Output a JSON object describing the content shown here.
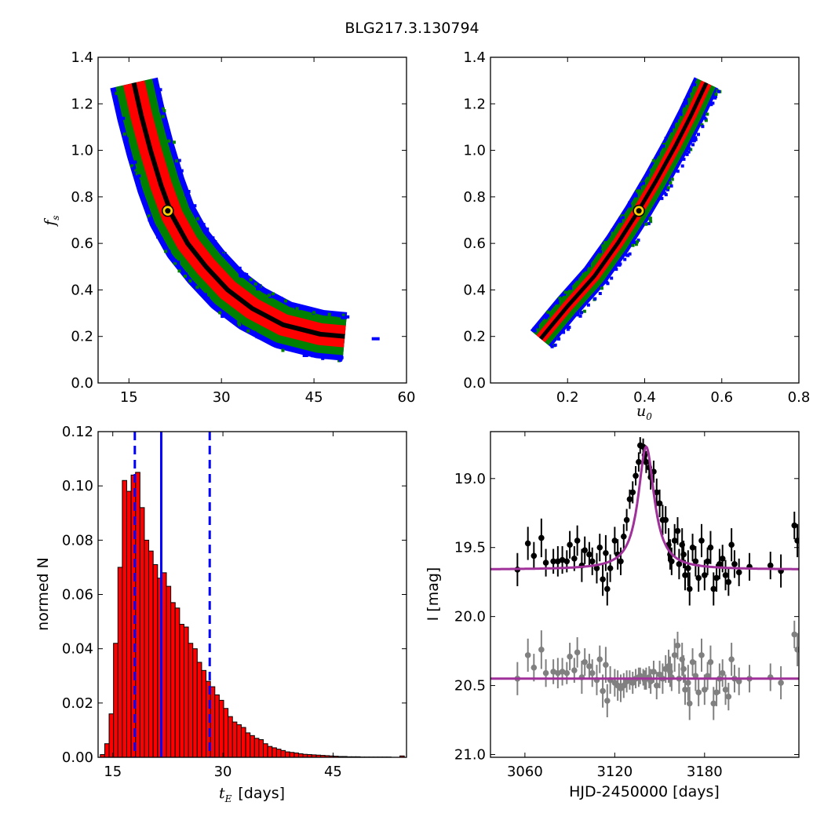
{
  "title": "BLG217.3.130794",
  "chart_data": [
    {
      "type": "heatmap",
      "panel": "fs-vs-tE",
      "xlabel": "",
      "ylabel": "f_s",
      "ylabel_main": "f",
      "ylabel_sub": "s",
      "xlim": [
        10,
        60
      ],
      "ylim": [
        0,
        1.4
      ],
      "xticks": [
        15,
        30,
        45,
        60
      ],
      "xtick_labels": [
        "15",
        "30",
        "45",
        "60"
      ],
      "yticks": [
        0.0,
        0.2,
        0.4,
        0.6,
        0.8,
        1.0,
        1.2,
        1.4
      ],
      "ytick_labels": [
        "0.0",
        "0.2",
        "0.4",
        "0.6",
        "0.8",
        "1.0",
        "1.2",
        "1.4"
      ],
      "confidence_colors": {
        "inner": "#000000",
        "1sigma": "#ff0000",
        "2sigma": "#008000",
        "3sigma": "#0000ff"
      },
      "ridge": [
        [
          15.8,
          1.29
        ],
        [
          17,
          1.15
        ],
        [
          18.5,
          1.0
        ],
        [
          20.2,
          0.85
        ],
        [
          22,
          0.72
        ],
        [
          24.5,
          0.6
        ],
        [
          27.5,
          0.5
        ],
        [
          31,
          0.4
        ],
        [
          35,
          0.32
        ],
        [
          40,
          0.25
        ],
        [
          46,
          0.21
        ],
        [
          50,
          0.2
        ]
      ],
      "best_fit": {
        "x": 21.3,
        "y": 0.74
      },
      "isolated_points": [
        [
          55,
          0.19
        ]
      ]
    },
    {
      "type": "heatmap",
      "panel": "fs-vs-u0",
      "xlabel": "u_0",
      "xlabel_main": "u",
      "xlabel_sub": "0",
      "ylabel": "",
      "xlim": [
        0,
        0.8
      ],
      "ylim": [
        0,
        1.4
      ],
      "xticks": [
        0.2,
        0.4,
        0.6,
        0.8
      ],
      "xtick_labels": [
        "0.2",
        "0.4",
        "0.6",
        "0.8"
      ],
      "yticks": [
        0.0,
        0.2,
        0.4,
        0.6,
        0.8,
        1.0,
        1.2,
        1.4
      ],
      "ytick_labels": [
        "0.0",
        "0.2",
        "0.4",
        "0.6",
        "0.8",
        "1.0",
        "1.2",
        "1.4"
      ],
      "confidence_colors": {
        "inner": "#000000",
        "1sigma": "#ff0000",
        "2sigma": "#008000",
        "3sigma": "#0000ff"
      },
      "ridge": [
        [
          0.13,
          0.19
        ],
        [
          0.2,
          0.33
        ],
        [
          0.27,
          0.46
        ],
        [
          0.33,
          0.6
        ],
        [
          0.38,
          0.73
        ],
        [
          0.43,
          0.87
        ],
        [
          0.48,
          1.02
        ],
        [
          0.52,
          1.15
        ],
        [
          0.56,
          1.29
        ]
      ],
      "best_fit": {
        "x": 0.385,
        "y": 0.74
      }
    },
    {
      "type": "bar",
      "panel": "tE-histogram",
      "xlabel": "t_E  [days]",
      "xlabel_main": "t",
      "xlabel_sub": "E",
      "xlabel_unit": "[days]",
      "ylabel": "normed N",
      "xlim": [
        13,
        55
      ],
      "ylim": [
        0,
        0.12
      ],
      "xticks": [
        15,
        30,
        45
      ],
      "xtick_labels": [
        "15",
        "30",
        "45"
      ],
      "yticks": [
        0.0,
        0.02,
        0.04,
        0.06,
        0.08,
        0.1,
        0.12
      ],
      "ytick_labels": [
        "0.00",
        "0.02",
        "0.04",
        "0.06",
        "0.08",
        "0.10",
        "0.12"
      ],
      "bin_start": 13.3,
      "bin_width": 0.6,
      "values": [
        0.001,
        0.005,
        0.016,
        0.042,
        0.07,
        0.102,
        0.098,
        0.104,
        0.105,
        0.092,
        0.08,
        0.076,
        0.071,
        0.066,
        0.068,
        0.063,
        0.057,
        0.055,
        0.049,
        0.048,
        0.042,
        0.04,
        0.035,
        0.032,
        0.028,
        0.026,
        0.023,
        0.021,
        0.018,
        0.015,
        0.013,
        0.012,
        0.011,
        0.009,
        0.008,
        0.007,
        0.0065,
        0.005,
        0.004,
        0.0035,
        0.003,
        0.0025,
        0.002,
        0.0018,
        0.0016,
        0.0013,
        0.0011,
        0.001,
        0.0009,
        0.0008,
        0.0007,
        0.0006,
        0.0005,
        0.0004,
        0.0003,
        0.0003,
        0.0002,
        0.0002,
        0.0002,
        0.0001,
        0.0001,
        0.0001,
        0.0001,
        0.0001,
        0.0001,
        0.0001,
        0,
        0,
        0.0005
      ],
      "bar_color": "#ff0000",
      "median": 21.6,
      "lower": 18.0,
      "upper": 28.2,
      "line_color": "#0000ff"
    },
    {
      "type": "scatter",
      "panel": "light-curve",
      "xlabel": "HJD-2450000 [days]",
      "ylabel": "I [mag]",
      "xlim": [
        3037,
        3243
      ],
      "ylim": [
        21.02,
        18.66
      ],
      "y_inverted": true,
      "xticks": [
        3060,
        3120,
        3180
      ],
      "xtick_labels": [
        "3060",
        "3120",
        "3180"
      ],
      "yticks": [
        19.0,
        19.5,
        20.0,
        20.5,
        21.0
      ],
      "ytick_labels": [
        "19.0",
        "19.5",
        "20.0",
        "20.5",
        "21.0"
      ],
      "model": {
        "baseline": 19.66,
        "peak_mag": 18.77,
        "t0": 3141,
        "width": 6.5,
        "color": "#a0309a"
      },
      "residual_model": {
        "level": 20.45,
        "color": "#a0309a"
      },
      "data_color": "#000000",
      "residual_color": "#808080",
      "points": [
        [
          3055,
          19.66,
          0.12
        ],
        [
          3062,
          19.47,
          0.12
        ],
        [
          3066,
          19.56,
          0.1
        ],
        [
          3071,
          19.43,
          0.14
        ],
        [
          3074,
          19.61,
          0.1
        ],
        [
          3079,
          19.6,
          0.09
        ],
        [
          3082,
          19.6,
          0.11
        ],
        [
          3085,
          19.59,
          0.1
        ],
        [
          3088,
          19.6,
          0.08
        ],
        [
          3090,
          19.48,
          0.1
        ],
        [
          3093,
          19.58,
          0.09
        ],
        [
          3095,
          19.45,
          0.11
        ],
        [
          3098,
          19.63,
          0.12
        ],
        [
          3100,
          19.52,
          0.1
        ],
        [
          3103,
          19.55,
          0.09
        ],
        [
          3105,
          19.6,
          0.1
        ],
        [
          3108,
          19.65,
          0.11
        ],
        [
          3110,
          19.5,
          0.1
        ],
        [
          3112,
          19.73,
          0.12
        ],
        [
          3114,
          19.54,
          0.13
        ],
        [
          3115,
          19.8,
          0.12
        ],
        [
          3117,
          19.65,
          0.1
        ],
        [
          3120,
          19.45,
          0.1
        ],
        [
          3122,
          19.55,
          0.11
        ],
        [
          3124,
          19.6,
          0.1
        ],
        [
          3126,
          19.42,
          0.09
        ],
        [
          3128,
          19.3,
          0.08
        ],
        [
          3130,
          19.15,
          0.07
        ],
        [
          3132,
          19.1,
          0.08
        ],
        [
          3134,
          18.98,
          0.07
        ],
        [
          3136,
          18.88,
          0.07
        ],
        [
          3137,
          18.76,
          0.06
        ],
        [
          3139,
          18.77,
          0.06
        ],
        [
          3140,
          18.83,
          0.07
        ],
        [
          3141,
          18.88,
          0.08
        ],
        [
          3143,
          18.92,
          0.08
        ],
        [
          3144,
          18.99,
          0.09
        ],
        [
          3146,
          18.95,
          0.08
        ],
        [
          3148,
          19.1,
          0.1
        ],
        [
          3150,
          19.18,
          0.1
        ],
        [
          3152,
          19.3,
          0.11
        ],
        [
          3154,
          19.3,
          0.1
        ],
        [
          3156,
          19.48,
          0.12
        ],
        [
          3157,
          19.55,
          0.11
        ],
        [
          3158,
          19.6,
          0.1
        ],
        [
          3160,
          19.45,
          0.12
        ],
        [
          3162,
          19.38,
          0.1
        ],
        [
          3163,
          19.62,
          0.11
        ],
        [
          3165,
          19.48,
          0.12
        ],
        [
          3166,
          19.55,
          0.1
        ],
        [
          3167,
          19.7,
          0.11
        ],
        [
          3169,
          19.65,
          0.13
        ],
        [
          3170,
          19.8,
          0.12
        ],
        [
          3172,
          19.5,
          0.1
        ],
        [
          3174,
          19.6,
          0.11
        ],
        [
          3176,
          19.72,
          0.1
        ],
        [
          3178,
          19.45,
          0.12
        ],
        [
          3180,
          19.7,
          0.11
        ],
        [
          3182,
          19.6,
          0.1
        ],
        [
          3184,
          19.5,
          0.12
        ],
        [
          3186,
          19.8,
          0.12
        ],
        [
          3188,
          19.72,
          0.1
        ],
        [
          3190,
          19.62,
          0.11
        ],
        [
          3192,
          19.58,
          0.1
        ],
        [
          3194,
          19.7,
          0.11
        ],
        [
          3196,
          19.75,
          0.1
        ],
        [
          3198,
          19.48,
          0.12
        ],
        [
          3200,
          19.62,
          0.1
        ],
        [
          3203,
          19.68,
          0.1
        ],
        [
          3210,
          19.64,
          0.1
        ],
        [
          3224,
          19.63,
          0.1
        ],
        [
          3231,
          19.67,
          0.12
        ],
        [
          3240,
          19.34,
          0.1
        ],
        [
          3242,
          19.45,
          0.12
        ]
      ],
      "residuals": [
        [
          3055,
          20.45,
          0.12
        ],
        [
          3062,
          20.28,
          0.12
        ],
        [
          3066,
          20.37,
          0.1
        ],
        [
          3071,
          20.24,
          0.14
        ],
        [
          3074,
          20.41,
          0.1
        ],
        [
          3079,
          20.4,
          0.09
        ],
        [
          3082,
          20.41,
          0.11
        ],
        [
          3085,
          20.4,
          0.1
        ],
        [
          3088,
          20.41,
          0.08
        ],
        [
          3090,
          20.29,
          0.1
        ],
        [
          3093,
          20.39,
          0.09
        ],
        [
          3095,
          20.26,
          0.11
        ],
        [
          3098,
          20.44,
          0.12
        ],
        [
          3100,
          20.33,
          0.1
        ],
        [
          3103,
          20.36,
          0.09
        ],
        [
          3105,
          20.41,
          0.1
        ],
        [
          3108,
          20.46,
          0.11
        ],
        [
          3110,
          20.31,
          0.1
        ],
        [
          3112,
          20.54,
          0.12
        ],
        [
          3114,
          20.35,
          0.13
        ],
        [
          3115,
          20.61,
          0.12
        ],
        [
          3117,
          20.46,
          0.1
        ],
        [
          3120,
          20.48,
          0.1
        ],
        [
          3122,
          20.5,
          0.11
        ],
        [
          3124,
          20.52,
          0.1
        ],
        [
          3126,
          20.5,
          0.09
        ],
        [
          3128,
          20.47,
          0.08
        ],
        [
          3130,
          20.46,
          0.07
        ],
        [
          3132,
          20.48,
          0.08
        ],
        [
          3134,
          20.45,
          0.07
        ],
        [
          3136,
          20.44,
          0.07
        ],
        [
          3137,
          20.43,
          0.06
        ],
        [
          3139,
          20.44,
          0.06
        ],
        [
          3140,
          20.46,
          0.07
        ],
        [
          3141,
          20.45,
          0.08
        ],
        [
          3143,
          20.44,
          0.08
        ],
        [
          3144,
          20.47,
          0.09
        ],
        [
          3146,
          20.4,
          0.08
        ],
        [
          3148,
          20.5,
          0.1
        ],
        [
          3150,
          20.42,
          0.1
        ],
        [
          3152,
          20.45,
          0.11
        ],
        [
          3154,
          20.38,
          0.1
        ],
        [
          3156,
          20.36,
          0.12
        ],
        [
          3157,
          20.4,
          0.11
        ],
        [
          3158,
          20.44,
          0.1
        ],
        [
          3160,
          20.28,
          0.12
        ],
        [
          3162,
          20.21,
          0.1
        ],
        [
          3163,
          20.45,
          0.11
        ],
        [
          3165,
          20.31,
          0.12
        ],
        [
          3166,
          20.38,
          0.1
        ],
        [
          3167,
          20.53,
          0.11
        ],
        [
          3169,
          20.48,
          0.13
        ],
        [
          3170,
          20.63,
          0.12
        ],
        [
          3172,
          20.33,
          0.1
        ],
        [
          3174,
          20.43,
          0.11
        ],
        [
          3176,
          20.55,
          0.1
        ],
        [
          3178,
          20.28,
          0.12
        ],
        [
          3180,
          20.53,
          0.11
        ],
        [
          3182,
          20.43,
          0.1
        ],
        [
          3184,
          20.33,
          0.12
        ],
        [
          3186,
          20.63,
          0.12
        ],
        [
          3188,
          20.55,
          0.1
        ],
        [
          3190,
          20.45,
          0.11
        ],
        [
          3192,
          20.41,
          0.1
        ],
        [
          3194,
          20.53,
          0.11
        ],
        [
          3196,
          20.58,
          0.1
        ],
        [
          3198,
          20.31,
          0.12
        ],
        [
          3200,
          20.45,
          0.1
        ],
        [
          3203,
          20.47,
          0.1
        ],
        [
          3210,
          20.45,
          0.1
        ],
        [
          3224,
          20.44,
          0.1
        ],
        [
          3231,
          20.48,
          0.12
        ],
        [
          3240,
          20.13,
          0.1
        ],
        [
          3242,
          20.24,
          0.12
        ]
      ]
    }
  ]
}
